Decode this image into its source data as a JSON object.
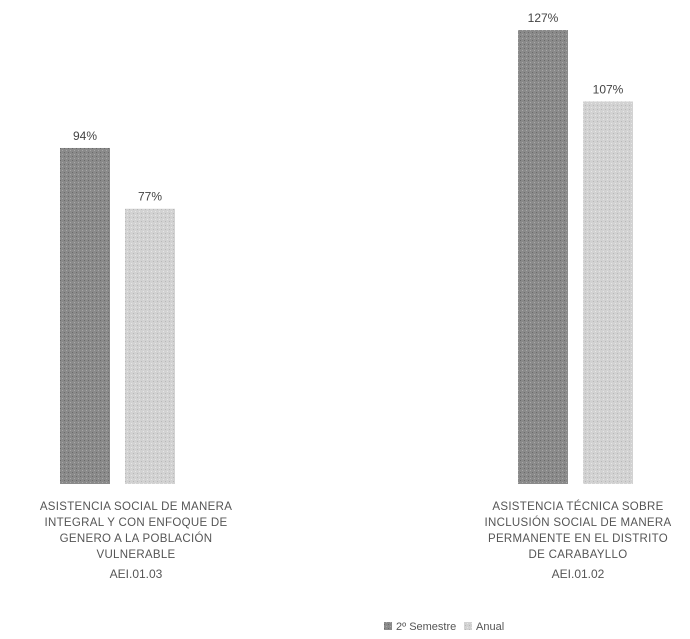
{
  "chart_data": {
    "type": "bar",
    "categories": [
      {
        "lines": [
          "ASISTENCIA SOCIAL DE MANERA",
          "INTEGRAL Y CON ENFOQUE DE",
          "GENERO A LA POBLACIÓN",
          "VULNERABLE"
        ],
        "code": "AEI.01.03"
      },
      {
        "lines": [
          "ASISTENCIA TÉCNICA SOBRE",
          "INCLUSIÓN SOCIAL DE MANERA",
          "PERMANENTE EN EL DISTRITO",
          "DE CARABAYLLO"
        ],
        "code": "AEI.01.02"
      }
    ],
    "series": [
      {
        "name": "2º Semestre",
        "values": [
          94,
          127
        ],
        "labels": [
          "94%",
          "127%"
        ],
        "color": "#8a8a8a"
      },
      {
        "name": "Anual",
        "values": [
          77,
          107
        ],
        "labels": [
          "77%",
          "107%"
        ],
        "color": "#cfcfcf"
      }
    ],
    "ylim": [
      0,
      127
    ],
    "legend": "bottom"
  }
}
